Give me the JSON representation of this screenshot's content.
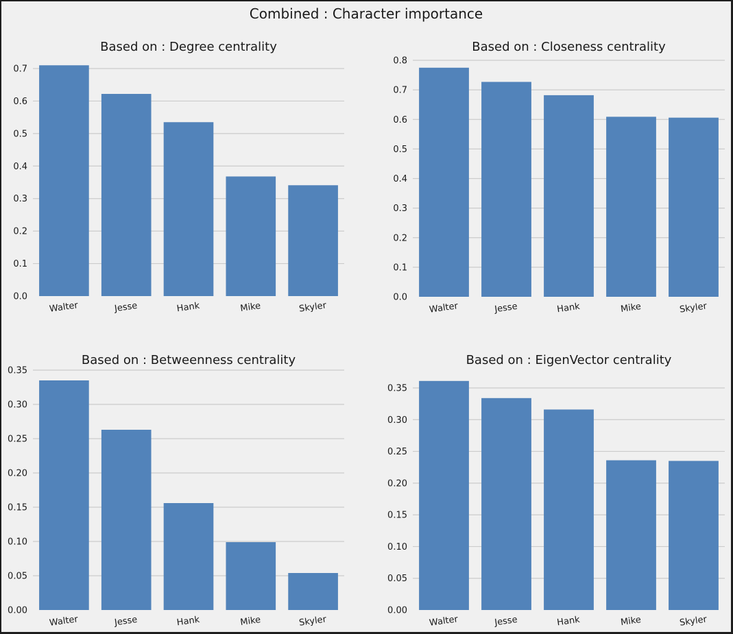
{
  "figure": {
    "title": "Combined : Character importance"
  },
  "style": {
    "bar_color": "#5283ba",
    "grid_color": "#cbcbcb",
    "background": "#f0f0f0",
    "text_color": "#1a1a1a"
  },
  "chart_data": [
    {
      "type": "bar",
      "title": "Based on : Degree centrality",
      "categories": [
        "Walter",
        "Jesse",
        "Hank",
        "Mike",
        "Skyler"
      ],
      "values": [
        0.71,
        0.622,
        0.535,
        0.368,
        0.341
      ],
      "ylim": [
        0,
        0.7
      ],
      "yticks": [
        "0.0",
        "0.1",
        "0.2",
        "0.3",
        "0.4",
        "0.5",
        "0.6",
        "0.7"
      ],
      "grid": true
    },
    {
      "type": "bar",
      "title": "Based on : Closeness centrality",
      "categories": [
        "Walter",
        "Jesse",
        "Hank",
        "Mike",
        "Skyler"
      ],
      "values": [
        0.775,
        0.727,
        0.682,
        0.609,
        0.606
      ],
      "ylim": [
        0,
        0.8
      ],
      "yticks": [
        "0.0",
        "0.1",
        "0.2",
        "0.3",
        "0.4",
        "0.5",
        "0.6",
        "0.7",
        "0.8"
      ],
      "grid": true
    },
    {
      "type": "bar",
      "title": "Based on : Betweenness centrality",
      "categories": [
        "Walter",
        "Jesse",
        "Hank",
        "Mike",
        "Skyler"
      ],
      "values": [
        0.335,
        0.263,
        0.156,
        0.099,
        0.054
      ],
      "ylim": [
        0,
        0.35
      ],
      "yticks": [
        "0.00",
        "0.05",
        "0.10",
        "0.15",
        "0.20",
        "0.25",
        "0.30",
        "0.35"
      ],
      "grid": true
    },
    {
      "type": "bar",
      "title": "Based on : EigenVector centrality",
      "categories": [
        "Walter",
        "Jesse",
        "Hank",
        "Mike",
        "Skyler"
      ],
      "values": [
        0.361,
        0.334,
        0.316,
        0.236,
        0.235
      ],
      "ylim": [
        0,
        0.35
      ],
      "yticks": [
        "0.00",
        "0.05",
        "0.10",
        "0.15",
        "0.20",
        "0.25",
        "0.30",
        "0.35"
      ],
      "grid": true
    }
  ]
}
